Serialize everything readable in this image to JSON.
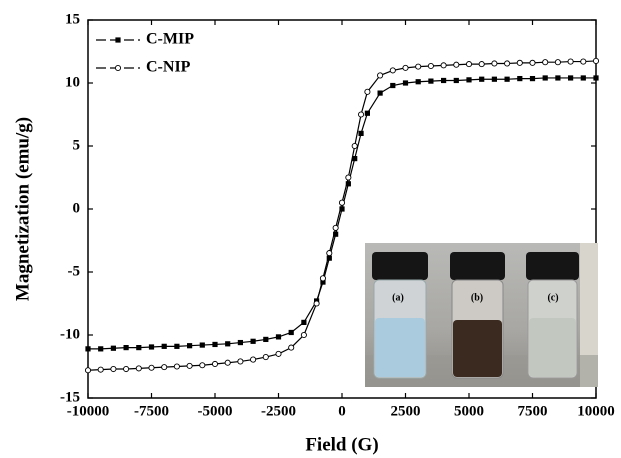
{
  "chart_data": {
    "type": "line",
    "xlabel": "Field (G)",
    "ylabel": "Magnetization (emu/g)",
    "x": [
      -10000,
      -9500,
      -9000,
      -8500,
      -8000,
      -7500,
      -7000,
      -6500,
      -6000,
      -5500,
      -5000,
      -4500,
      -4000,
      -3500,
      -3000,
      -2500,
      -2000,
      -1500,
      -1000,
      -750,
      -500,
      -250,
      0,
      250,
      500,
      750,
      1000,
      1500,
      2000,
      2500,
      3000,
      3500,
      4000,
      4500,
      5000,
      5500,
      6000,
      6500,
      7000,
      7500,
      8000,
      8500,
      9000,
      9500,
      10000
    ],
    "series": [
      {
        "name": "C-MIP",
        "color": "#000000",
        "marker": "square",
        "values": [
          -11.1,
          -11.1,
          -11.05,
          -11.0,
          -11.0,
          -10.95,
          -10.9,
          -10.9,
          -10.85,
          -10.8,
          -10.75,
          -10.7,
          -10.6,
          -10.5,
          -10.35,
          -10.15,
          -9.8,
          -9.0,
          -7.3,
          -5.8,
          -3.9,
          -2.0,
          0,
          2.0,
          4.0,
          6.0,
          7.6,
          9.2,
          9.8,
          10.0,
          10.1,
          10.15,
          10.2,
          10.2,
          10.25,
          10.3,
          10.3,
          10.3,
          10.35,
          10.35,
          10.4,
          10.4,
          10.4,
          10.4,
          10.4
        ]
      },
      {
        "name": "C-NIP",
        "color": "#000000",
        "marker": "open-circle",
        "values": [
          -12.8,
          -12.75,
          -12.7,
          -12.7,
          -12.65,
          -12.6,
          -12.55,
          -12.5,
          -12.45,
          -12.4,
          -12.3,
          -12.2,
          -12.1,
          -11.95,
          -11.75,
          -11.5,
          -11.0,
          -10.0,
          -7.5,
          -5.5,
          -3.5,
          -1.5,
          0.5,
          2.5,
          5.0,
          7.5,
          9.3,
          10.6,
          11.0,
          11.2,
          11.3,
          11.35,
          11.4,
          11.45,
          11.5,
          11.5,
          11.55,
          11.55,
          11.6,
          11.6,
          11.65,
          11.65,
          11.7,
          11.7,
          11.75
        ]
      }
    ],
    "xlim": [
      -10000,
      10000
    ],
    "xticks": [
      -10000,
      -7500,
      -5000,
      -2500,
      0,
      2500,
      5000,
      7500,
      10000
    ],
    "ylim": [
      -15,
      15
    ],
    "yticks": [
      -15,
      -10,
      -5,
      0,
      5,
      10,
      15
    ],
    "legend": "upper left",
    "inset_labels": [
      "(a)",
      "(b)",
      "(c)"
    ]
  }
}
